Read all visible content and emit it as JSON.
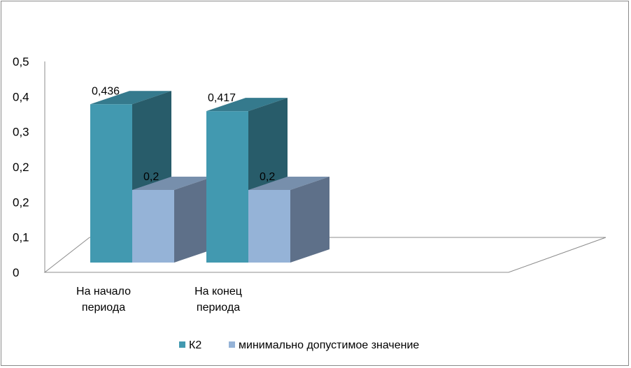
{
  "chart_data": {
    "type": "bar",
    "three_d": true,
    "categories": [
      "На начало периода",
      "На конец периода"
    ],
    "category_lines": [
      [
        "На начало",
        "периода"
      ],
      [
        "На конец",
        "периода"
      ]
    ],
    "series": [
      {
        "name": "К2",
        "values": [
          0.436,
          0.417
        ],
        "labels": [
          "0,436",
          "0,417"
        ],
        "color": "#4299B0"
      },
      {
        "name": "минимально допустимое значение",
        "values": [
          0.2,
          0.2
        ],
        "labels": [
          "0,2",
          "0,2"
        ],
        "color": "#95B3D7"
      }
    ],
    "y_ticks": [
      "0",
      "0,1",
      "0,2",
      "0,2",
      "0,3",
      "0,4",
      "0,5"
    ],
    "ylim": [
      0,
      0.5
    ],
    "grid": false,
    "legend_position": "bottom"
  }
}
